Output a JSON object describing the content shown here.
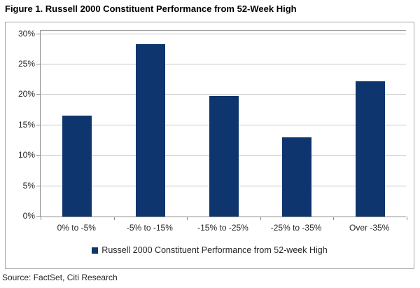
{
  "title": "Figure 1. Russell 2000 Constituent Performance from 52-Week High",
  "source": "Source: FactSet, Citi Research",
  "legend": {
    "marker": "square-icon",
    "label": "Russell 2000 Constituent Performance from 52-week High"
  },
  "colors": {
    "bar": "#0e356d",
    "gridline": "#c8c8c8",
    "axis": "#8c8c8c",
    "frame_border": "#a6a6a6",
    "text": "#262626"
  },
  "chart_data": {
    "type": "bar",
    "title": "Figure 1. Russell 2000 Constituent Performance from 52-Week High",
    "categories": [
      "0% to -5%",
      "-5% to -15%",
      "-15% to -25%",
      "-25% to -35%",
      "Over -35%"
    ],
    "values": [
      16.6,
      28.4,
      19.8,
      13.0,
      22.2
    ],
    "series_name": "Russell 2000 Constituent Performance from 52-week High",
    "xlabel": "",
    "ylabel": "",
    "ylim": [
      0,
      30
    ],
    "ytick_step": 5,
    "ytick_labels": [
      "0%",
      "5%",
      "10%",
      "15%",
      "20%",
      "25%",
      "30%"
    ],
    "grid": true,
    "legend_position": "bottom",
    "source": "Source: FactSet, Citi Research"
  }
}
